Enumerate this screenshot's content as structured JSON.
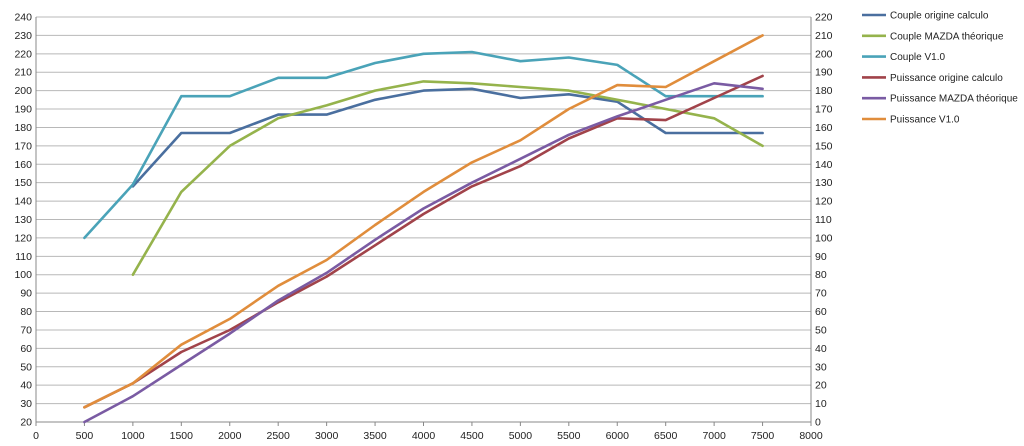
{
  "chart_data": {
    "type": "line",
    "x": [
      500,
      1000,
      1500,
      2000,
      2500,
      3000,
      3500,
      4000,
      4500,
      5000,
      5500,
      6000,
      6500,
      7000,
      7500
    ],
    "xlim": [
      0,
      8000
    ],
    "xticks": [
      "0",
      "500",
      "1000",
      "1500",
      "2000",
      "2500",
      "3000",
      "3500",
      "4000",
      "4500",
      "5000",
      "5500",
      "6000",
      "6500",
      "7000",
      "7500",
      "8000"
    ],
    "ylim_left": [
      20,
      240
    ],
    "yticks_left": [
      "20",
      "30",
      "40",
      "50",
      "60",
      "70",
      "80",
      "90",
      "100",
      "110",
      "120",
      "130",
      "140",
      "150",
      "160",
      "170",
      "180",
      "190",
      "200",
      "210",
      "220",
      "230",
      "240"
    ],
    "ylim_right": [
      0,
      220
    ],
    "yticks_right": [
      "0",
      "10",
      "20",
      "30",
      "40",
      "50",
      "60",
      "70",
      "80",
      "90",
      "100",
      "110",
      "120",
      "130",
      "140",
      "150",
      "160",
      "170",
      "180",
      "190",
      "200",
      "210",
      "220"
    ],
    "grid": "horizontal",
    "legend_position": "right",
    "series": [
      {
        "name": "Couple origine calculo",
        "axis": "left",
        "color": "#4a6f9f",
        "values": [
          null,
          148,
          177,
          177,
          187,
          187,
          195,
          200,
          201,
          196,
          198,
          194,
          177,
          177,
          177
        ]
      },
      {
        "name": "Couple MAZDA théorique",
        "axis": "left",
        "color": "#95b34c",
        "values": [
          null,
          100,
          145,
          170,
          185,
          192,
          200,
          205,
          204,
          202,
          200,
          195,
          190,
          185,
          170
        ]
      },
      {
        "name": "Couple V1.0",
        "axis": "left",
        "color": "#4aa3b8",
        "values": [
          120,
          149,
          197,
          197,
          207,
          207,
          215,
          220,
          221,
          216,
          218,
          214,
          197,
          197,
          197
        ]
      },
      {
        "name": "Puissance origine calculo",
        "axis": "right",
        "color": "#a1434a",
        "values": [
          8,
          21,
          38,
          50,
          65,
          79,
          96,
          113,
          128,
          139,
          154,
          165,
          164,
          176,
          188
        ]
      },
      {
        "name": "Puissance MAZDA théorique",
        "axis": "right",
        "color": "#7a5ba3",
        "values": [
          0,
          14,
          31,
          48,
          66,
          81,
          99,
          116,
          130,
          143,
          156,
          166,
          175,
          184,
          181
        ]
      },
      {
        "name": "Puissance V1.0",
        "axis": "right",
        "color": "#e08d3c",
        "values": [
          8,
          21,
          42,
          56,
          74,
          88,
          107,
          125,
          141,
          153,
          170,
          183,
          182,
          196,
          210
        ]
      }
    ]
  }
}
